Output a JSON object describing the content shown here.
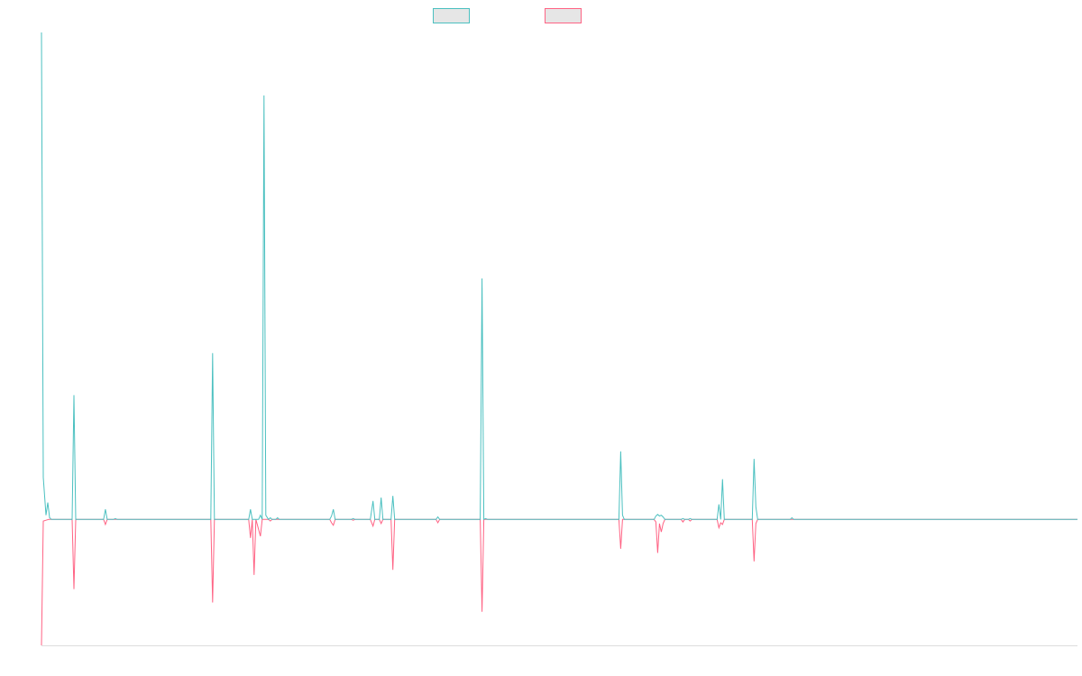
{
  "colors": {
    "series_a": "#4bc0c0",
    "series_b": "#ff6384",
    "legend_fill": "#e6e6e6",
    "axis": "#dddddd"
  },
  "chart_data": {
    "type": "line",
    "title": "",
    "xlabel": "",
    "ylabel": "",
    "x_range": [
      0,
      1150
    ],
    "ylim": [
      -1.5,
      5.8
    ],
    "grid": false,
    "legend": "top-center",
    "series": [
      {
        "color": "#4bc0c0",
        "points": [
          [
            0,
            5.8
          ],
          [
            2,
            0.5
          ],
          [
            5,
            0.05
          ],
          [
            7,
            0.2
          ],
          [
            9,
            0.02
          ],
          [
            11,
            0
          ],
          [
            34,
            0
          ],
          [
            36,
            1.48
          ],
          [
            38,
            0
          ],
          [
            69,
            0
          ],
          [
            71,
            0.12
          ],
          [
            73,
            0
          ],
          [
            80,
            0
          ],
          [
            82,
            0.01
          ],
          [
            84,
            0
          ],
          [
            188,
            0
          ],
          [
            190,
            1.98
          ],
          [
            192,
            0
          ],
          [
            230,
            0
          ],
          [
            232,
            0.12
          ],
          [
            234,
            0
          ],
          [
            241,
            0
          ],
          [
            243,
            0.05
          ],
          [
            245,
            0
          ],
          [
            247,
            5.05
          ],
          [
            249,
            0.05
          ],
          [
            252,
            0
          ],
          [
            254,
            0.02
          ],
          [
            256,
            0
          ],
          [
            260,
            0
          ],
          [
            262,
            0.02
          ],
          [
            264,
            0
          ],
          [
            320,
            0
          ],
          [
            322,
            0.04
          ],
          [
            324,
            0.12
          ],
          [
            326,
            0
          ],
          [
            344,
            0
          ],
          [
            346,
            0.01
          ],
          [
            348,
            0
          ],
          [
            365,
            0
          ],
          [
            368,
            0.22
          ],
          [
            370,
            0
          ],
          [
            375,
            0
          ],
          [
            377,
            0.26
          ],
          [
            379,
            0
          ],
          [
            388,
            0
          ],
          [
            390,
            0.28
          ],
          [
            392,
            0
          ],
          [
            438,
            0
          ],
          [
            440,
            0.03
          ],
          [
            442,
            0
          ],
          [
            487,
            0
          ],
          [
            489,
            2.87
          ],
          [
            491,
            0
          ],
          [
            493,
            0.01
          ],
          [
            495,
            0
          ],
          [
            641,
            0
          ],
          [
            643,
            0.81
          ],
          [
            645,
            0.05
          ],
          [
            647,
            0
          ],
          [
            680,
            0
          ],
          [
            682,
            0.04
          ],
          [
            684,
            0.06
          ],
          [
            686,
            0.04
          ],
          [
            688,
            0.05
          ],
          [
            690,
            0.03
          ],
          [
            692,
            0
          ],
          [
            710,
            0
          ],
          [
            712,
            0.01
          ],
          [
            714,
            0
          ],
          [
            718,
            0
          ],
          [
            720,
            0.01
          ],
          [
            722,
            0
          ],
          [
            750,
            0
          ],
          [
            752,
            0.18
          ],
          [
            754,
            0
          ],
          [
            756,
            0.48
          ],
          [
            758,
            0
          ],
          [
            789,
            0
          ],
          [
            791,
            0.72
          ],
          [
            793,
            0.15
          ],
          [
            795,
            0
          ],
          [
            831,
            0
          ],
          [
            833,
            0.02
          ],
          [
            835,
            0
          ],
          [
            1150,
            0
          ]
        ]
      },
      {
        "color": "#ff6384",
        "points": [
          [
            0,
            -1.5
          ],
          [
            2,
            -0.02
          ],
          [
            5,
            -0.01
          ],
          [
            8,
            0
          ],
          [
            34,
            0
          ],
          [
            36,
            -0.83
          ],
          [
            38,
            0
          ],
          [
            69,
            0
          ],
          [
            71,
            -0.06
          ],
          [
            73,
            0
          ],
          [
            188,
            0
          ],
          [
            190,
            -0.99
          ],
          [
            192,
            0
          ],
          [
            230,
            0
          ],
          [
            232,
            -0.22
          ],
          [
            234,
            0
          ],
          [
            236,
            -0.66
          ],
          [
            238,
            0
          ],
          [
            243,
            -0.2
          ],
          [
            245,
            0
          ],
          [
            252,
            0
          ],
          [
            254,
            -0.02
          ],
          [
            256,
            0
          ],
          [
            320,
            0
          ],
          [
            322,
            -0.04
          ],
          [
            324,
            -0.07
          ],
          [
            326,
            0
          ],
          [
            344,
            0
          ],
          [
            346,
            -0.01
          ],
          [
            348,
            0
          ],
          [
            365,
            0
          ],
          [
            368,
            -0.08
          ],
          [
            370,
            0
          ],
          [
            375,
            0
          ],
          [
            377,
            -0.05
          ],
          [
            379,
            0
          ],
          [
            388,
            0
          ],
          [
            390,
            -0.6
          ],
          [
            392,
            0
          ],
          [
            438,
            0
          ],
          [
            440,
            -0.04
          ],
          [
            442,
            0
          ],
          [
            487,
            0
          ],
          [
            489,
            -1.1
          ],
          [
            491,
            0
          ],
          [
            641,
            0
          ],
          [
            643,
            -0.35
          ],
          [
            645,
            0
          ],
          [
            680,
            0
          ],
          [
            682,
            -0.03
          ],
          [
            684,
            -0.4
          ],
          [
            686,
            -0.05
          ],
          [
            688,
            -0.15
          ],
          [
            690,
            -0.05
          ],
          [
            692,
            0
          ],
          [
            710,
            0
          ],
          [
            712,
            -0.03
          ],
          [
            714,
            0
          ],
          [
            718,
            0
          ],
          [
            720,
            -0.02
          ],
          [
            722,
            0
          ],
          [
            750,
            0
          ],
          [
            752,
            -0.1
          ],
          [
            754,
            -0.04
          ],
          [
            756,
            -0.06
          ],
          [
            758,
            0
          ],
          [
            789,
            0
          ],
          [
            791,
            -0.5
          ],
          [
            793,
            -0.05
          ],
          [
            795,
            0
          ],
          [
            1150,
            0
          ]
        ]
      }
    ]
  }
}
